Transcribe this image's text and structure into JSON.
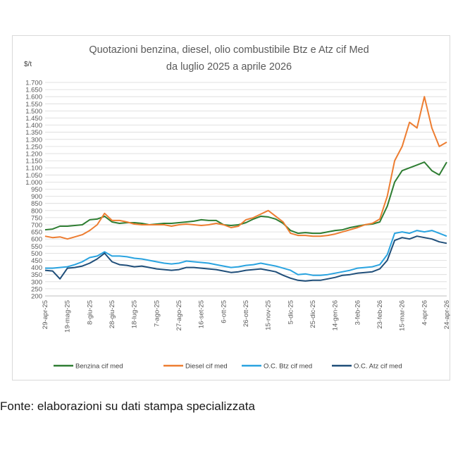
{
  "chart_data": {
    "type": "line",
    "title": "Quotazioni benzina, diesel, olio combustibile Btz e Atz cif Med",
    "subtitle": "da luglio 2025 a aprile 2026",
    "ylabel": "$/t",
    "ylim": [
      200,
      1700
    ],
    "yticks": [
      "200",
      "250",
      "300",
      "350",
      "400",
      "450",
      "500",
      "550",
      "600",
      "650",
      "700",
      "750",
      "800",
      "850",
      "900",
      "950",
      "1.000",
      "1.050",
      "1.100",
      "1.150",
      "1.200",
      "1.250",
      "1.300",
      "1.350",
      "1.400",
      "1.450",
      "1.500",
      "1.550",
      "1.600",
      "1.650",
      "1.700"
    ],
    "xticks": [
      "29-apr-25",
      "19-mag-25",
      "8-giu-25",
      "28-giu-25",
      "18-lug-25",
      "7-ago-25",
      "27-ago-25",
      "16-set-25",
      "6-ott-25",
      "26-ott-25",
      "15-nov-25",
      "5-dic-25",
      "25-dic-25",
      "14-gen-26",
      "3-feb-26",
      "23-feb-26",
      "15-mar-26",
      "4-apr-26",
      "24-apr-26"
    ],
    "x": [
      "29-apr-25",
      "5-mag-25",
      "12-mag-25",
      "19-mag-25",
      "26-mag-25",
      "2-giu-25",
      "8-giu-25",
      "15-giu-25",
      "22-giu-25",
      "28-giu-25",
      "5-lug-25",
      "12-lug-25",
      "18-lug-25",
      "25-lug-25",
      "1-ago-25",
      "7-ago-25",
      "14-ago-25",
      "21-ago-25",
      "27-ago-25",
      "3-set-25",
      "10-set-25",
      "16-set-25",
      "23-set-25",
      "30-set-25",
      "6-ott-25",
      "13-ott-25",
      "20-ott-25",
      "26-ott-25",
      "2-nov-25",
      "9-nov-25",
      "15-nov-25",
      "22-nov-25",
      "29-nov-25",
      "5-dic-25",
      "12-dic-25",
      "19-dic-25",
      "25-dic-25",
      "1-gen-26",
      "8-gen-26",
      "14-gen-26",
      "21-gen-26",
      "28-gen-26",
      "3-feb-26",
      "10-feb-26",
      "17-feb-26",
      "23-feb-26",
      "2-mar-26",
      "9-mar-26",
      "15-mar-26",
      "22-mar-26",
      "29-mar-26",
      "4-apr-26",
      "11-apr-26",
      "18-apr-26",
      "24-apr-26"
    ],
    "series": [
      {
        "name": "Benzina cif med",
        "color": "#2e7d32",
        "values": [
          665,
          670,
          690,
          690,
          695,
          700,
          735,
          740,
          760,
          720,
          710,
          715,
          715,
          710,
          700,
          705,
          710,
          710,
          715,
          720,
          725,
          735,
          730,
          730,
          700,
          695,
          700,
          715,
          740,
          760,
          755,
          740,
          710,
          660,
          640,
          645,
          640,
          640,
          650,
          660,
          665,
          680,
          690,
          700,
          705,
          720,
          830,
          1000,
          1080,
          1100,
          1120,
          1140,
          1080,
          1050,
          1140
        ]
      },
      {
        "name": "Diesel cif med",
        "color": "#ed7d31",
        "values": [
          620,
          610,
          615,
          600,
          615,
          630,
          660,
          700,
          780,
          730,
          730,
          720,
          705,
          700,
          700,
          700,
          700,
          690,
          700,
          705,
          700,
          695,
          700,
          710,
          700,
          680,
          690,
          735,
          750,
          775,
          800,
          760,
          720,
          640,
          625,
          625,
          620,
          620,
          625,
          635,
          650,
          665,
          680,
          700,
          710,
          740,
          900,
          1150,
          1250,
          1420,
          1380,
          1600,
          1380,
          1250,
          1280
        ]
      },
      {
        "name": "O.C. Btz cif med",
        "color": "#29a3e0",
        "values": [
          395,
          395,
          400,
          405,
          420,
          440,
          470,
          480,
          510,
          480,
          480,
          475,
          465,
          460,
          450,
          440,
          430,
          425,
          430,
          445,
          440,
          435,
          430,
          420,
          410,
          400,
          405,
          415,
          420,
          430,
          420,
          410,
          395,
          380,
          350,
          355,
          345,
          345,
          350,
          360,
          370,
          380,
          395,
          400,
          405,
          420,
          490,
          640,
          650,
          640,
          660,
          650,
          660,
          640,
          620
        ]
      },
      {
        "name": "O.C. Atz cif med",
        "color": "#1f4e79",
        "values": [
          380,
          375,
          320,
          395,
          400,
          410,
          430,
          460,
          500,
          440,
          420,
          415,
          405,
          410,
          400,
          390,
          385,
          380,
          385,
          400,
          400,
          395,
          390,
          385,
          375,
          365,
          370,
          380,
          385,
          390,
          380,
          370,
          345,
          325,
          310,
          305,
          310,
          310,
          320,
          330,
          345,
          350,
          360,
          365,
          370,
          390,
          450,
          590,
          610,
          600,
          620,
          610,
          600,
          580,
          570
        ]
      }
    ],
    "legend_position": "bottom",
    "grid": true
  },
  "source": "Fonte: elaborazioni su dati stampa specializzata"
}
